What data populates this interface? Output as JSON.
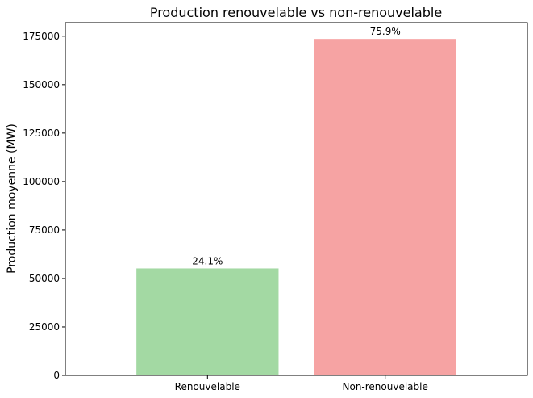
{
  "chart_data": {
    "type": "bar",
    "title": "Production renouvelable vs non-renouvelable",
    "xlabel": "",
    "ylabel": "Production moyenne (MW)",
    "categories": [
      "Renouvelable",
      "Non-renouvelable"
    ],
    "values": [
      55200,
      173600
    ],
    "data_labels": [
      "24.1%",
      "75.9%"
    ],
    "colors": [
      "#a3d9a3",
      "#f6a3a3"
    ],
    "ylim": [
      0,
      182000
    ],
    "yticks": [
      0,
      25000,
      50000,
      75000,
      100000,
      125000,
      150000,
      175000
    ],
    "ytick_labels": [
      "0",
      "25000",
      "50000",
      "75000",
      "100000",
      "125000",
      "150000",
      "175000"
    ],
    "grid": false,
    "legend": "none"
  }
}
